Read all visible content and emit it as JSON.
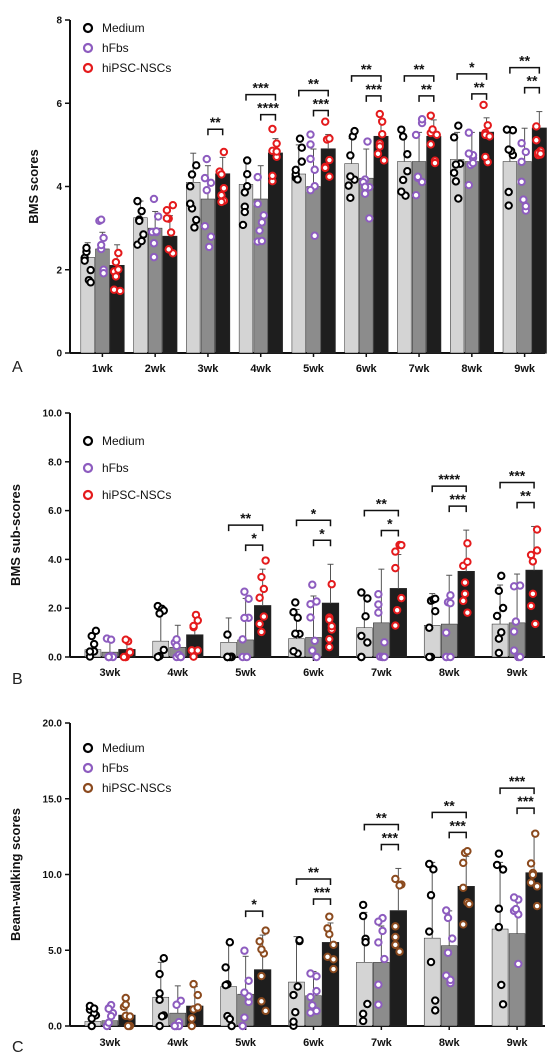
{
  "chart_data": [
    {
      "type": "bar",
      "panel_label": "A",
      "ylabel": "BMS scores",
      "ylim": [
        0,
        8
      ],
      "yticks": [
        "0",
        "2",
        "4",
        "6",
        "8"
      ],
      "categories": [
        "1wk",
        "2wk",
        "3wk",
        "4wk",
        "5wk",
        "6wk",
        "7wk",
        "8wk",
        "9wk"
      ],
      "series": [
        {
          "name": "Medium",
          "values": [
            2.3,
            3.25,
            4.1,
            4.05,
            4.3,
            4.55,
            4.6,
            4.65,
            4.6
          ],
          "errors": [
            0.35,
            0.4,
            0.7,
            0.6,
            0.7,
            0.6,
            0.6,
            0.65,
            0.7
          ]
        },
        {
          "name": "hFbs",
          "values": [
            2.5,
            3.0,
            3.7,
            3.7,
            4.0,
            4.2,
            4.6,
            4.6,
            4.6
          ],
          "errors": [
            0.4,
            0.4,
            0.8,
            0.8,
            0.9,
            0.7,
            0.7,
            0.7,
            0.8
          ]
        },
        {
          "name": "hiPSC-NSCs",
          "values": [
            2.1,
            2.8,
            4.3,
            4.8,
            4.9,
            5.2,
            5.2,
            5.3,
            5.4
          ],
          "errors": [
            0.5,
            0.5,
            0.4,
            0.35,
            0.35,
            0.4,
            0.4,
            0.35,
            0.4
          ]
        }
      ],
      "significance": [
        {
          "category": "3wk",
          "pair": "hFbs-hiPSC-NSCs",
          "stars": "**"
        },
        {
          "category": "4wk",
          "pair": "Medium-hiPSC-NSCs",
          "stars": "***"
        },
        {
          "category": "4wk",
          "pair": "hFbs-hiPSC-NSCs",
          "stars": "****"
        },
        {
          "category": "5wk",
          "pair": "Medium-hiPSC-NSCs",
          "stars": "**"
        },
        {
          "category": "5wk",
          "pair": "hFbs-hiPSC-NSCs",
          "stars": "***"
        },
        {
          "category": "6wk",
          "pair": "Medium-hiPSC-NSCs",
          "stars": "**"
        },
        {
          "category": "6wk",
          "pair": "hFbs-hiPSC-NSCs",
          "stars": "***"
        },
        {
          "category": "7wk",
          "pair": "Medium-hiPSC-NSCs",
          "stars": "**"
        },
        {
          "category": "7wk",
          "pair": "hFbs-hiPSC-NSCs",
          "stars": "**"
        },
        {
          "category": "8wk",
          "pair": "Medium-hiPSC-NSCs",
          "stars": "*"
        },
        {
          "category": "8wk",
          "pair": "hFbs-hiPSC-NSCs",
          "stars": "**"
        },
        {
          "category": "9wk",
          "pair": "Medium-hiPSC-NSCs",
          "stars": "**"
        },
        {
          "category": "9wk",
          "pair": "hFbs-hiPSC-NSCs",
          "stars": "**"
        }
      ],
      "legend": "top-left",
      "grid": false
    },
    {
      "type": "bar",
      "panel_label": "B",
      "ylabel": "BMS sub-scores",
      "ylim": [
        0,
        10
      ],
      "yticks": [
        "0.0",
        "2.0",
        "4.0",
        "6.0",
        "8.0",
        "10.0"
      ],
      "categories": [
        "3wk",
        "4wk",
        "5wk",
        "6wk",
        "7wk",
        "8wk",
        "9wk"
      ],
      "series": [
        {
          "name": "Medium",
          "values": [
            0.3,
            0.65,
            0.6,
            0.75,
            1.2,
            1.3,
            1.35
          ],
          "errors": [
            0.6,
            1.1,
            1.0,
            1.2,
            1.3,
            1.3,
            1.6
          ]
        },
        {
          "name": "hFbs",
          "values": [
            0.2,
            0.4,
            0.7,
            0.8,
            1.4,
            1.35,
            1.4
          ],
          "errors": [
            0.6,
            0.9,
            1.7,
            1.7,
            2.2,
            2.0,
            2.0
          ]
        },
        {
          "name": "hiPSC-NSCs",
          "values": [
            0.3,
            0.9,
            2.1,
            2.2,
            2.8,
            3.5,
            3.55
          ],
          "errors": [
            0.4,
            0.8,
            1.5,
            1.6,
            1.4,
            1.7,
            1.8
          ]
        }
      ],
      "significance": [
        {
          "category": "5wk",
          "pair": "Medium-hiPSC-NSCs",
          "stars": "**"
        },
        {
          "category": "5wk",
          "pair": "hFbs-hiPSC-NSCs",
          "stars": "*"
        },
        {
          "category": "6wk",
          "pair": "Medium-hiPSC-NSCs",
          "stars": "*"
        },
        {
          "category": "6wk",
          "pair": "hFbs-hiPSC-NSCs",
          "stars": "*"
        },
        {
          "category": "7wk",
          "pair": "Medium-hiPSC-NSCs",
          "stars": "**"
        },
        {
          "category": "7wk",
          "pair": "hFbs-hiPSC-NSCs",
          "stars": "*"
        },
        {
          "category": "8wk",
          "pair": "Medium-hiPSC-NSCs",
          "stars": "****"
        },
        {
          "category": "8wk",
          "pair": "hFbs-hiPSC-NSCs",
          "stars": "***"
        },
        {
          "category": "9wk",
          "pair": "Medium-hiPSC-NSCs",
          "stars": "***"
        },
        {
          "category": "9wk",
          "pair": "hFbs-hiPSC-NSCs",
          "stars": "**"
        }
      ],
      "legend": "top-left",
      "grid": false
    },
    {
      "type": "bar",
      "panel_label": "C",
      "ylabel": "Beam-walking scores",
      "ylim": [
        0,
        20
      ],
      "yticks": [
        "0.0",
        "5.0",
        "10.0",
        "15.0",
        "20.0"
      ],
      "categories": [
        "3wk",
        "4wk",
        "5wk",
        "6wk",
        "7wk",
        "8wk",
        "9wk"
      ],
      "series": [
        {
          "name": "Medium",
          "values": [
            0.3,
            1.9,
            2.6,
            2.9,
            4.2,
            5.8,
            6.4
          ],
          "errors": [
            1.0,
            2.3,
            2.9,
            3.0,
            3.3,
            5.0,
            4.4
          ]
        },
        {
          "name": "hFbs",
          "values": [
            0.35,
            0.85,
            2.1,
            2.0,
            4.2,
            5.3,
            6.1
          ],
          "errors": [
            0.8,
            1.8,
            2.5,
            1.6,
            2.4,
            2.3,
            2.2
          ]
        },
        {
          "name": "hiPSC-NSCs",
          "values": [
            0.7,
            1.3,
            3.7,
            5.5,
            7.6,
            9.2,
            10.1
          ],
          "errors": [
            0.8,
            1.3,
            2.3,
            1.3,
            2.8,
            2.0,
            2.7
          ]
        }
      ],
      "significance": [
        {
          "category": "5wk",
          "pair": "hFbs-hiPSC-NSCs",
          "stars": "*"
        },
        {
          "category": "6wk",
          "pair": "Medium-hiPSC-NSCs",
          "stars": "**"
        },
        {
          "category": "6wk",
          "pair": "hFbs-hiPSC-NSCs",
          "stars": "***"
        },
        {
          "category": "7wk",
          "pair": "Medium-hiPSC-NSCs",
          "stars": "**"
        },
        {
          "category": "7wk",
          "pair": "hFbs-hiPSC-NSCs",
          "stars": "***"
        },
        {
          "category": "8wk",
          "pair": "Medium-hiPSC-NSCs",
          "stars": "**"
        },
        {
          "category": "8wk",
          "pair": "hFbs-hiPSC-NSCs",
          "stars": "***"
        },
        {
          "category": "9wk",
          "pair": "Medium-hiPSC-NSCs",
          "stars": "***"
        },
        {
          "category": "9wk",
          "pair": "hFbs-hiPSC-NSCs",
          "stars": "***"
        }
      ],
      "legend": "top-left",
      "grid": false
    }
  ],
  "colors": {
    "medium_bar": "#d4d4d4",
    "hfbs_bar": "#8c8c8c",
    "nsc_bar": "#1e1e1e",
    "medium_marker": "#000000",
    "hfbs_marker": "#8d5cbf",
    "nsc_marker_a": "#e41a1c",
    "nsc_marker_b": "#e41a1c",
    "nsc_marker_c": "#8b4a1e"
  }
}
